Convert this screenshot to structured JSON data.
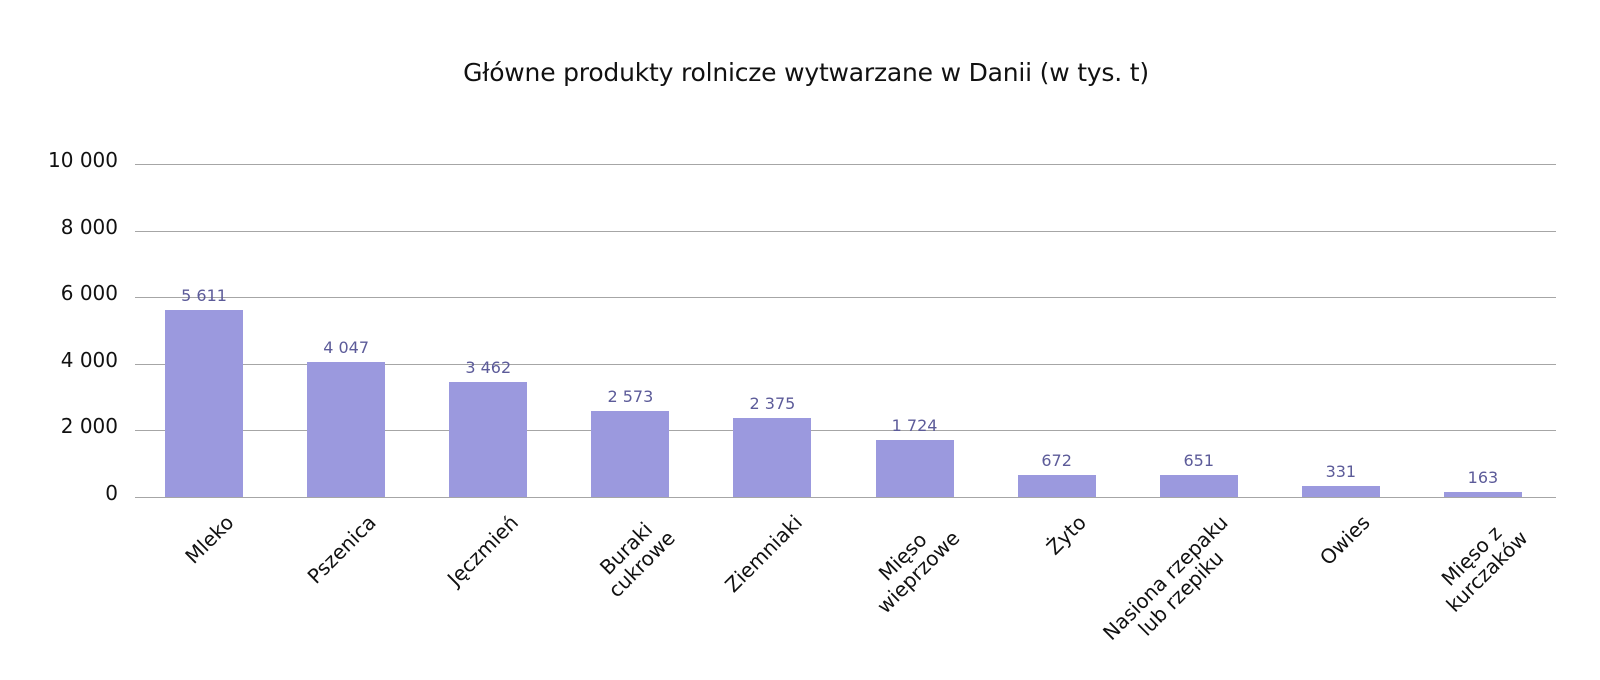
{
  "chart_data": {
    "type": "bar",
    "title": "Główne produkty rolnicze wytwarzane w Danii (w tys. t)",
    "xlabel": "",
    "ylabel": "",
    "ylim": [
      0,
      10000
    ],
    "yticks": [
      0,
      2000,
      4000,
      6000,
      8000,
      10000
    ],
    "ytick_labels": [
      "0",
      "2 000",
      "4 000",
      "6 000",
      "8 000",
      "10 000"
    ],
    "grid": true,
    "legend": null,
    "categories": [
      "Mleko",
      "Pszenica",
      "Jęczmień",
      "Buraki cukrowe",
      "Ziemniaki",
      "Mięso wieprzowe",
      "Żyto",
      "Nasiona rzepaku lub rzepiku",
      "Owies",
      "Mięso z kurczaków"
    ],
    "category_labels_display": [
      "Mleko",
      "Pszenica",
      "Jęczmień",
      "Buraki\ncukrowe",
      "Ziemniaki",
      "Mięso\nwieprzowe",
      "Żyto",
      "Nasiona rzepaku\nlub rzepiku",
      "Owies",
      "Mięso z\nkurczaków"
    ],
    "values": [
      5611,
      4047,
      3462,
      2573,
      2375,
      1724,
      672,
      651,
      331,
      163
    ],
    "value_labels": [
      "5 611",
      "4 047",
      "3 462",
      "2 573",
      "2 375",
      "1 724",
      "672",
      "651",
      "331",
      "163"
    ],
    "colors": {
      "bar": "#9b99de",
      "value_label": "#5c5b99",
      "grid": "#a6a6a6",
      "text": "#111111"
    }
  }
}
